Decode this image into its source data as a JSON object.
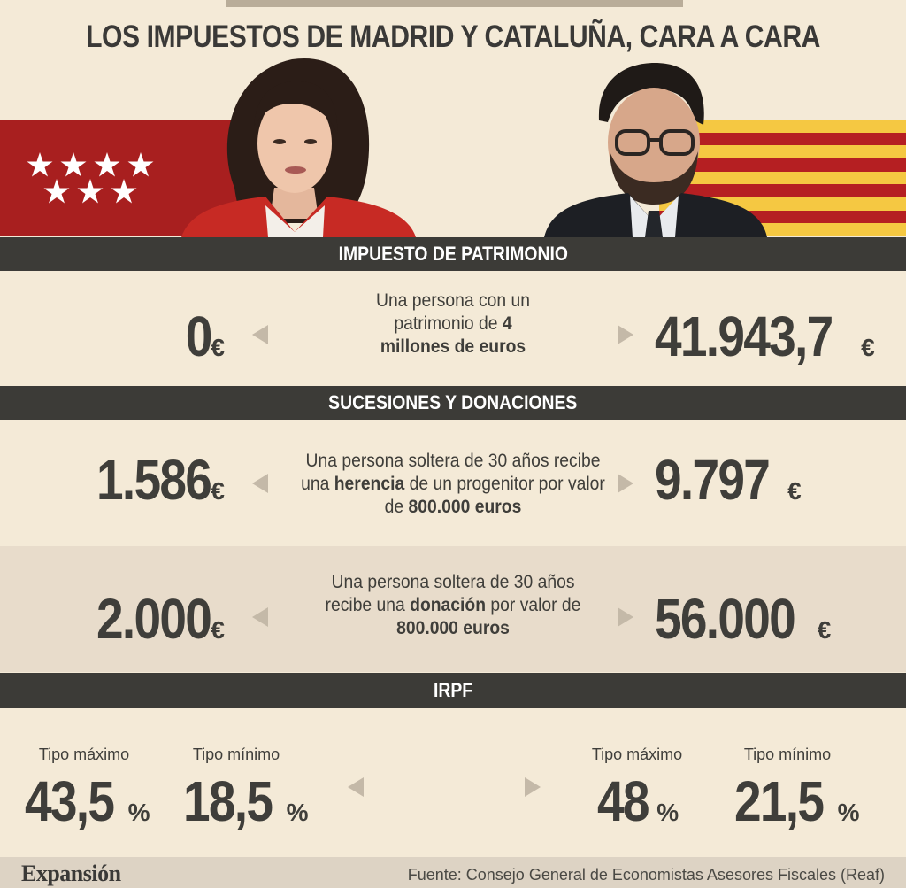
{
  "title": "LOS IMPUESTOS DE MADRID Y CATALUÑA, CARA A CARA",
  "colors": {
    "madrid_red": "#a81f1f",
    "cat_yellow": "#f5c842",
    "cat_red": "#b51f22",
    "band": "#3c3b37",
    "background": "#f4ead7"
  },
  "sections": {
    "patrimonio": {
      "header": "IMPUESTO DE PATRIMONIO",
      "madrid_value": "0",
      "catalonia_value": "41.943,7",
      "unit": "€",
      "desc_part1": "Una persona con un patrimonio de ",
      "desc_bold": "4 millones de euros"
    },
    "sucesiones": {
      "header": "SUCESIONES Y DONACIONES",
      "herencia": {
        "madrid_value": "1.586",
        "catalonia_value": "9.797",
        "unit": "€",
        "desc_part1": "Una persona soltera de 30 años recibe una ",
        "desc_bold1": "herencia",
        "desc_part2": " de un progenitor por valor de ",
        "desc_bold2": "800.000 euros"
      },
      "donacion": {
        "madrid_value": "2.000",
        "catalonia_value": "56.000",
        "unit": "€",
        "desc_part1": "Una persona soltera de 30 años recibe una ",
        "desc_bold1": "donación",
        "desc_part2": " por valor de ",
        "desc_bold2": "800.000 euros"
      }
    },
    "irpf": {
      "header": "IRPF",
      "madrid_max_label": "Tipo máximo",
      "madrid_max_value": "43,5",
      "madrid_min_label": "Tipo mínimo",
      "madrid_min_value": "18,5",
      "catalonia_max_label": "Tipo máximo",
      "catalonia_max_value": "48",
      "catalonia_min_label": "Tipo mínimo",
      "catalonia_min_value": "21,5",
      "unit": "%"
    }
  },
  "footer": {
    "logo": "Expansión",
    "source": "Fuente: Consejo General de Economistas Asesores Fiscales (Reaf)"
  }
}
